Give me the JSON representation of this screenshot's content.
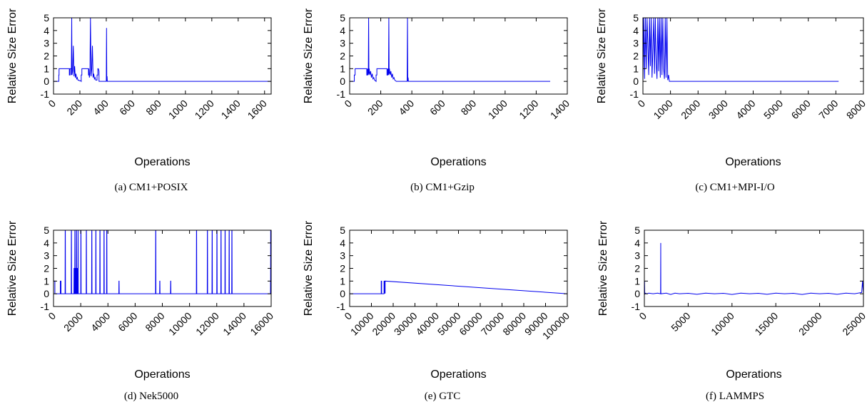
{
  "colors": {
    "series": "#0000ee",
    "axis": "#000000"
  },
  "chart_data": [
    {
      "type": "line",
      "caption": "(a) CM1+POSIX",
      "xlabel": "Operations",
      "ylabel": "Relative Size Error",
      "xlim": [
        0,
        1650
      ],
      "ylim": [
        -1,
        5
      ],
      "xticks": [
        0,
        200,
        400,
        600,
        800,
        1000,
        1200,
        1400,
        1600
      ],
      "yticks": [
        -1,
        0,
        1,
        2,
        3,
        4,
        5
      ],
      "grid": false,
      "series": [
        {
          "x": [
            0,
            40,
            40,
            42,
            42,
            120,
            120,
            125,
            125,
            135,
            135,
            138,
            140,
            145,
            150,
            155,
            160,
            165,
            170,
            175,
            180,
            185,
            190,
            195,
            200,
            205,
            210,
            210,
            215,
            215,
            265,
            265,
            268,
            268,
            272,
            276,
            280,
            285,
            290,
            295,
            300,
            305,
            310,
            315,
            320,
            330,
            330,
            336,
            336,
            340,
            345,
            345,
            350,
            400,
            402,
            404,
            406,
            408,
            410,
            1645
          ],
          "y": [
            0,
            0,
            0.5,
            0.5,
            1,
            1,
            0.5,
            0.5,
            1,
            1,
            0.5,
            5,
            0.5,
            0.8,
            2.8,
            0.4,
            1.2,
            0.3,
            0.6,
            0.2,
            0.3,
            0.1,
            0.1,
            0.05,
            0.05,
            0.05,
            0,
            0.5,
            0.5,
            1,
            1,
            0.5,
            0.5,
            1,
            0.3,
            0.6,
            5,
            0.4,
            1,
            2.8,
            0.3,
            0.6,
            0.2,
            0.3,
            0.1,
            0.1,
            0.5,
            0.5,
            1,
            1,
            0.8,
            0,
            0,
            0,
            4.2,
            0,
            0.4,
            0,
            0,
            0
          ]
        }
      ]
    },
    {
      "type": "line",
      "caption": "(b) CM1+Gzip",
      "xlabel": "Operations",
      "ylabel": "Relative Size Error",
      "xlim": [
        0,
        1400
      ],
      "ylim": [
        -1,
        5
      ],
      "xticks": [
        0,
        200,
        400,
        600,
        800,
        1000,
        1200,
        1400
      ],
      "yticks": [
        -1,
        0,
        1,
        2,
        3,
        4,
        5
      ],
      "grid": false,
      "series": [
        {
          "x": [
            0,
            30,
            30,
            35,
            35,
            110,
            110,
            115,
            115,
            120,
            122,
            124,
            126,
            130,
            135,
            140,
            145,
            150,
            155,
            160,
            165,
            170,
            170,
            175,
            175,
            240,
            240,
            245,
            245,
            250,
            252,
            254,
            256,
            260,
            265,
            270,
            275,
            280,
            285,
            290,
            295,
            300,
            305,
            370,
            372,
            374,
            376,
            378,
            1290
          ],
          "y": [
            0,
            0,
            0.5,
            0.5,
            1,
            1,
            0.5,
            0.5,
            1,
            0.5,
            5,
            0.6,
            1,
            0.5,
            0.8,
            0.3,
            0.6,
            0.2,
            0.3,
            0.1,
            0.05,
            0,
            0.5,
            0.5,
            1,
            1,
            0.5,
            0.5,
            1,
            0.5,
            5,
            0.6,
            1,
            0.5,
            0.8,
            0.3,
            0.6,
            0.2,
            0.3,
            0.1,
            0.05,
            0,
            0,
            0,
            5,
            0,
            0.3,
            0,
            0
          ]
        }
      ]
    },
    {
      "type": "line",
      "caption": "(c) CM1+MPI-I/O",
      "xlabel": "Operations",
      "ylabel": "Relative Size Error",
      "xlim": [
        0,
        8000
      ],
      "ylim": [
        -1,
        5
      ],
      "xticks": [
        0,
        1000,
        2000,
        3000,
        4000,
        5000,
        6000,
        7000,
        8000
      ],
      "yticks": [
        -1,
        0,
        1,
        2,
        3,
        4,
        5
      ],
      "grid": false,
      "series": [
        {
          "x": [
            0,
            30,
            60,
            90,
            120,
            150,
            180,
            210,
            240,
            270,
            300,
            330,
            360,
            390,
            420,
            450,
            480,
            510,
            540,
            570,
            600,
            630,
            660,
            690,
            720,
            750,
            780,
            810,
            840,
            870,
            900,
            930,
            960,
            1000,
            7100
          ],
          "y": [
            0,
            5,
            0.2,
            5,
            1,
            5,
            2.8,
            0.5,
            5,
            1.2,
            5,
            0.3,
            2.5,
            5,
            0.6,
            5,
            1.5,
            0.2,
            5,
            0.8,
            5,
            0.3,
            5,
            0.5,
            5,
            1,
            0.2,
            5,
            0.3,
            5,
            0.1,
            0.5,
            0,
            0,
            0
          ]
        }
      ]
    },
    {
      "type": "line",
      "caption": "(d) Nek5000",
      "xlabel": "Operations",
      "ylabel": "Relative Size Error",
      "xlim": [
        0,
        16000
      ],
      "ylim": [
        -1,
        5
      ],
      "xticks": [
        0,
        2000,
        4000,
        6000,
        8000,
        10000,
        12000,
        14000,
        16000
      ],
      "yticks": [
        -1,
        0,
        1,
        2,
        3,
        4,
        5
      ],
      "grid": false,
      "series": [
        {
          "x": [
            0,
            100,
            100,
            500,
            500,
            550,
            550,
            850,
            860,
            870,
            880,
            890,
            1300,
            1310,
            1320,
            1330,
            1500,
            1510,
            1520,
            1530,
            1560,
            1570,
            1580,
            1590,
            1620,
            1630,
            1640,
            1650,
            1680,
            1690,
            1700,
            1710,
            1750,
            1760,
            1770,
            1780,
            1800,
            1810,
            1820,
            2000,
            2010,
            2020,
            2030,
            2400,
            2410,
            2420,
            2430,
            2800,
            2810,
            2820,
            2830,
            3100,
            3110,
            3120,
            3130,
            3400,
            3410,
            3420,
            3430,
            3700,
            3710,
            3720,
            3730,
            3900,
            3910,
            3920,
            3930,
            4800,
            4810,
            4820,
            4830,
            7500,
            7510,
            7520,
            7530,
            7800,
            7810,
            7820,
            7830,
            8600,
            8610,
            8620,
            8630,
            10500,
            10510,
            10520,
            10530,
            11300,
            11310,
            11320,
            11330,
            11650,
            11660,
            11670,
            11680,
            12000,
            12010,
            12020,
            12030,
            12300,
            12310,
            12320,
            12330,
            12600,
            12610,
            12620,
            12630,
            12900,
            12910,
            12920,
            12930,
            13100,
            13110,
            13120,
            13130,
            15950,
            15955,
            15960,
            15965,
            15970,
            15975,
            16100
          ],
          "y": [
            1,
            1,
            0,
            0,
            1,
            1,
            0,
            0,
            5,
            5,
            0,
            0,
            0,
            5,
            5,
            0,
            0,
            2,
            2,
            0,
            0,
            5,
            5,
            0,
            0,
            2,
            2,
            0,
            0,
            5,
            5,
            0,
            0,
            2,
            2,
            0,
            0,
            5,
            0,
            0,
            5,
            5,
            0,
            0,
            5,
            5,
            0,
            0,
            5,
            5,
            0,
            0,
            5,
            5,
            0,
            0,
            5,
            5,
            0,
            0,
            5,
            5,
            0,
            0,
            5,
            5,
            0,
            0,
            1,
            1,
            0,
            0,
            5,
            5,
            0,
            0,
            1,
            1,
            0,
            0,
            1,
            1,
            0,
            0,
            5,
            5,
            0,
            0,
            5,
            5,
            0,
            0,
            5,
            5,
            0,
            0,
            5,
            5,
            0,
            0,
            5,
            5,
            0,
            0,
            5,
            5,
            0,
            0,
            5,
            5,
            0,
            0,
            5,
            5,
            0,
            0,
            1,
            1,
            5,
            5,
            0,
            0
          ]
        }
      ]
    },
    {
      "type": "line",
      "caption": "(e) GTC",
      "xlabel": "Operations",
      "ylabel": "Relative Size Error",
      "xlim": [
        0,
        100000
      ],
      "ylim": [
        -1,
        5
      ],
      "xticks": [
        0,
        10000,
        20000,
        30000,
        40000,
        50000,
        60000,
        70000,
        80000,
        90000,
        100000
      ],
      "yticks": [
        -1,
        0,
        1,
        2,
        3,
        4,
        5
      ],
      "grid": false,
      "series": [
        {
          "x": [
            0,
            14500,
            14500,
            14700,
            14700,
            15800,
            15800,
            16100,
            16100,
            16300,
            16300,
            100000
          ],
          "y": [
            0,
            0,
            1,
            1,
            0,
            0,
            1,
            1,
            0.05,
            0.05,
            1,
            0
          ]
        }
      ]
    },
    {
      "type": "line",
      "caption": "(f) LAMMPS",
      "xlabel": "Operations",
      "ylabel": "Relative Size Error",
      "xlim": [
        0,
        25000
      ],
      "ylim": [
        -1,
        5
      ],
      "xticks": [
        0,
        5000,
        10000,
        15000,
        20000,
        25000
      ],
      "yticks": [
        -1,
        0,
        1,
        2,
        3,
        4,
        5
      ],
      "grid": false,
      "series": [
        {
          "x": [
            0,
            10,
            20,
            40,
            60,
            100,
            300,
            500,
            1000,
            1500,
            1850,
            1870,
            1880,
            1900,
            2500,
            3000,
            3500,
            4000,
            5000,
            6000,
            7000,
            8000,
            9000,
            10000,
            11000,
            12000,
            13000,
            14000,
            15000,
            16000,
            17000,
            18000,
            19000,
            20000,
            21000,
            22000,
            23000,
            24000,
            24800,
            24900,
            25000
          ],
          "y": [
            1,
            0.3,
            1,
            0.1,
            0,
            0.05,
            0,
            0.05,
            0,
            0.05,
            0,
            4,
            0.1,
            0,
            0.05,
            -0.05,
            0.05,
            0,
            0.04,
            -0.04,
            0.05,
            0,
            0.04,
            -0.05,
            0.05,
            0,
            0.04,
            -0.04,
            0.05,
            0,
            0.04,
            -0.05,
            0.05,
            0,
            0.04,
            -0.04,
            0.05,
            0,
            0.1,
            1,
            0
          ]
        }
      ]
    }
  ]
}
